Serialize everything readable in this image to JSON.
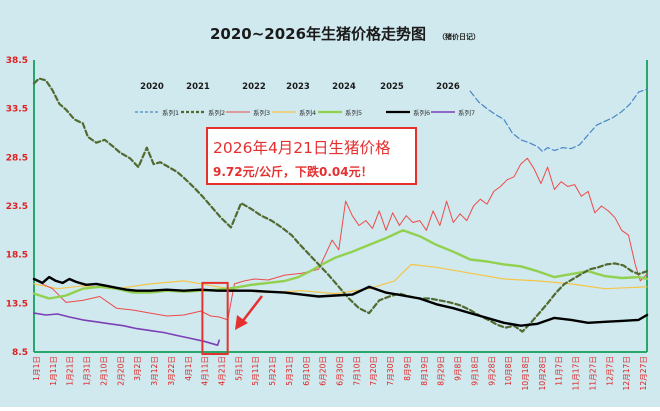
{
  "chart_data": {
    "type": "line",
    "title": "2020~2026年生猪价格走势图",
    "subtitle": "（猪价日记）",
    "ylim": [
      8.5,
      38.5
    ],
    "yticks": [
      "8.5",
      "13.5",
      "18.5",
      "23.5",
      "28.5",
      "33.5",
      "38.5"
    ],
    "x_ticks": [
      "1月1日",
      "1月11日",
      "1月21日",
      "1月31日",
      "2月10日",
      "2月20日",
      "3月2日",
      "3月12日",
      "3月22日",
      "4月1日",
      "4月11日",
      "4月21日",
      "5月1日",
      "5月11日",
      "5月21日",
      "5月31日",
      "6月10日",
      "6月20日",
      "6月30日",
      "7月10日",
      "7月20日",
      "7月30日",
      "8月9日",
      "8月19日",
      "8月29日",
      "9月8日",
      "9月18日",
      "9月28日",
      "10月8日",
      "10月18日",
      "10月28日",
      "11月7日",
      "11月17日",
      "11月27日",
      "12月7日",
      "12月17日",
      "12月27日"
    ],
    "x_domain": [
      1,
      365
    ],
    "year_labels": [
      "2020",
      "2021",
      "2022",
      "2023",
      "2024",
      "2025",
      "2026"
    ],
    "grid": false,
    "legend_position": "top",
    "series": [
      {
        "name": "系列1",
        "color": "#4a86c5",
        "dash": "6,3",
        "width": 1.2,
        "x": [
          260,
          265,
          270,
          275,
          280,
          285,
          290,
          295,
          300,
          303,
          306,
          310,
          315,
          320,
          325,
          330,
          335,
          340,
          345,
          350,
          355,
          360,
          365
        ],
        "y": [
          35.3,
          34.2,
          33.5,
          32.9,
          32.4,
          31.0,
          30.3,
          30.0,
          29.6,
          29.1,
          29.5,
          29.2,
          29.5,
          29.4,
          29.8,
          30.8,
          31.8,
          32.2,
          32.6,
          33.2,
          34.0,
          35.2,
          35.5
        ]
      },
      {
        "name": "系列2",
        "color": "#526a2f",
        "dash": "5,3",
        "width": 2.2,
        "x": [
          1,
          4,
          8,
          12,
          16,
          20,
          25,
          30,
          33,
          38,
          43,
          48,
          52,
          58,
          63,
          68,
          72,
          76,
          80,
          86,
          90,
          96,
          101,
          106,
          112,
          118,
          124,
          130,
          136,
          142,
          148,
          154,
          158,
          164,
          170,
          176,
          182,
          188,
          194,
          200,
          206,
          212,
          218,
          224,
          230,
          236,
          242,
          248,
          254,
          260,
          266,
          272,
          276,
          281,
          286,
          291,
          296,
          301,
          306,
          311,
          316,
          321,
          326,
          331,
          336,
          341,
          346,
          351,
          356,
          360,
          365
        ],
        "y": [
          36.1,
          36.6,
          36.4,
          35.4,
          34.0,
          33.4,
          32.4,
          32.0,
          30.6,
          30.0,
          30.3,
          29.6,
          29.0,
          28.4,
          27.5,
          29.5,
          27.8,
          28.0,
          27.6,
          27.0,
          26.4,
          25.4,
          24.5,
          23.5,
          22.3,
          21.3,
          23.8,
          23.2,
          22.5,
          22.0,
          21.3,
          20.5,
          19.7,
          18.6,
          17.5,
          16.4,
          15.2,
          14.0,
          13.0,
          12.5,
          13.8,
          14.2,
          14.5,
          14.2,
          14.0,
          14.0,
          13.8,
          13.6,
          13.3,
          12.8,
          12.2,
          11.7,
          11.3,
          11.0,
          11.2,
          10.6,
          11.5,
          12.5,
          13.5,
          14.6,
          15.5,
          16.0,
          16.5,
          17.0,
          17.2,
          17.5,
          17.6,
          17.4,
          16.8,
          16.5,
          16.8
        ]
      },
      {
        "name": "系列3",
        "color": "#ef4a4a",
        "dash": "",
        "width": 1.0,
        "x": [
          1,
          6,
          12,
          20,
          30,
          40,
          50,
          60,
          70,
          80,
          90,
          100,
          106,
          111,
          116,
          120,
          126,
          132,
          140,
          150,
          160,
          170,
          178,
          182,
          186,
          190,
          194,
          198,
          202,
          206,
          210,
          214,
          218,
          222,
          226,
          230,
          234,
          238,
          242,
          246,
          250,
          254,
          258,
          262,
          266,
          270,
          274,
          278,
          282,
          286,
          290,
          294,
          298,
          302,
          306,
          310,
          314,
          318,
          322,
          326,
          330,
          334,
          338,
          342,
          346,
          350,
          354,
          358,
          361,
          365
        ],
        "y": [
          16.0,
          15.5,
          15.0,
          13.6,
          13.8,
          14.2,
          13.0,
          12.8,
          12.5,
          12.2,
          12.3,
          12.7,
          12.2,
          12.1,
          11.8,
          15.5,
          15.8,
          16.0,
          15.9,
          16.4,
          16.6,
          17.0,
          20.0,
          19.0,
          24.0,
          22.5,
          21.5,
          22.0,
          21.2,
          23.0,
          21.0,
          22.8,
          21.5,
          22.5,
          21.8,
          22.0,
          21.0,
          23.0,
          21.5,
          24.0,
          21.8,
          22.7,
          22.0,
          23.5,
          24.2,
          23.7,
          25.0,
          25.5,
          26.2,
          26.5,
          27.8,
          28.4,
          27.3,
          25.8,
          27.5,
          25.2,
          26.0,
          25.5,
          25.7,
          24.5,
          25.0,
          22.8,
          23.5,
          23.0,
          22.3,
          21.0,
          20.5,
          17.5,
          15.8,
          16.5
        ]
      },
      {
        "name": "系列4",
        "color": "#f5c54a",
        "dash": "",
        "width": 1.2,
        "x": [
          1,
          15,
          30,
          50,
          70,
          90,
          110,
          125,
          140,
          160,
          180,
          200,
          215,
          225,
          240,
          260,
          280,
          300,
          320,
          340,
          365
        ],
        "y": [
          15.5,
          15.0,
          15.3,
          15.0,
          15.5,
          15.8,
          15.2,
          14.8,
          14.6,
          14.8,
          14.5,
          15.0,
          15.8,
          17.5,
          17.2,
          16.6,
          16.0,
          15.8,
          15.5,
          15.0,
          15.2
        ]
      },
      {
        "name": "系列5",
        "color": "#92d050",
        "dash": "",
        "width": 2.4,
        "x": [
          1,
          10,
          20,
          30,
          40,
          50,
          60,
          70,
          80,
          90,
          100,
          110,
          120,
          130,
          140,
          150,
          158,
          165,
          172,
          180,
          190,
          200,
          210,
          220,
          230,
          240,
          250,
          260,
          270,
          280,
          290,
          300,
          310,
          320,
          330,
          340,
          350,
          360,
          365
        ],
        "y": [
          14.5,
          14.0,
          14.3,
          15.0,
          15.2,
          15.0,
          14.6,
          14.6,
          14.8,
          14.7,
          14.8,
          14.9,
          15.1,
          15.4,
          15.6,
          15.8,
          16.2,
          16.8,
          17.5,
          18.2,
          18.8,
          19.5,
          20.2,
          21.0,
          20.4,
          19.5,
          18.8,
          18.0,
          17.8,
          17.5,
          17.3,
          16.8,
          16.2,
          16.5,
          16.8,
          16.3,
          16.1,
          16.2,
          16.0
        ]
      },
      {
        "name": "系列6",
        "color": "#000000",
        "dash": "",
        "width": 2.4,
        "x": [
          1,
          6,
          10,
          14,
          18,
          22,
          26,
          32,
          38,
          44,
          50,
          56,
          62,
          70,
          80,
          90,
          100,
          110,
          120,
          130,
          140,
          150,
          160,
          170,
          180,
          190,
          200,
          210,
          220,
          230,
          240,
          250,
          260,
          270,
          280,
          290,
          300,
          310,
          320,
          330,
          340,
          350,
          360,
          365
        ],
        "y": [
          16.0,
          15.6,
          16.2,
          15.8,
          15.6,
          16.0,
          15.7,
          15.4,
          15.5,
          15.3,
          15.1,
          14.9,
          14.8,
          14.8,
          14.9,
          14.8,
          14.9,
          14.8,
          14.8,
          14.8,
          14.7,
          14.6,
          14.4,
          14.2,
          14.3,
          14.4,
          15.2,
          14.6,
          14.3,
          14.0,
          13.4,
          13.0,
          12.5,
          12.0,
          11.5,
          11.2,
          11.4,
          12.0,
          11.8,
          11.5,
          11.6,
          11.7,
          11.8,
          12.3
        ]
      },
      {
        "name": "系列7",
        "color": "#7c3fb5",
        "dash": "",
        "width": 1.6,
        "x": [
          1,
          8,
          15,
          22,
          30,
          38,
          46,
          54,
          62,
          70,
          78,
          86,
          94,
          102,
          110,
          111
        ],
        "y": [
          12.5,
          12.3,
          12.4,
          12.1,
          11.8,
          11.6,
          11.4,
          11.2,
          10.9,
          10.7,
          10.5,
          10.2,
          9.9,
          9.6,
          9.2,
          9.7
        ]
      }
    ],
    "annotation": {
      "line1": "2026年4月21日生猪价格",
      "line2": "9.72元/公斤，下跌0.04元！",
      "highlight_x": [
        101,
        116
      ],
      "highlight_y": [
        8.5,
        15.6
      ]
    }
  },
  "colors": {
    "background": "#cfe9ee",
    "axis": "#27a86a",
    "tick_text": "#e02020",
    "title": "#1a1a1a"
  }
}
